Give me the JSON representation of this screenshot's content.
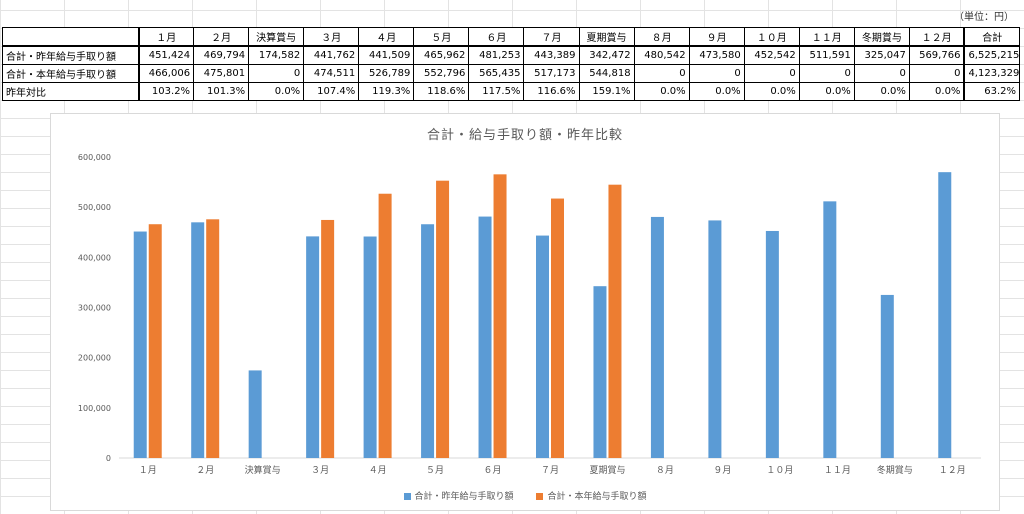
{
  "unit_label": "（単位：円）",
  "table": {
    "headers": [
      "",
      "１月",
      "２月",
      "決算賞与",
      "３月",
      "４月",
      "５月",
      "６月",
      "７月",
      "夏期賞与",
      "８月",
      "９月",
      "１０月",
      "１１月",
      "冬期賞与",
      "１２月",
      "合計"
    ],
    "rows": [
      {
        "label": "合計・昨年給与手取り額",
        "cells": [
          "451,424",
          "469,794",
          "174,582",
          "441,762",
          "441,509",
          "465,962",
          "481,253",
          "443,389",
          "342,472",
          "480,542",
          "473,580",
          "452,542",
          "511,591",
          "325,047",
          "569,766",
          "6,525,215"
        ]
      },
      {
        "label": "合計・本年給与手取り額",
        "cells": [
          "466,006",
          "475,801",
          "0",
          "474,511",
          "526,789",
          "552,796",
          "565,435",
          "517,173",
          "544,818",
          "0",
          "0",
          "0",
          "0",
          "0",
          "0",
          "4,123,329"
        ]
      },
      {
        "label": "昨年対比",
        "cells": [
          "103.2%",
          "101.3%",
          "0.0%",
          "107.4%",
          "119.3%",
          "118.6%",
          "117.5%",
          "116.6%",
          "159.1%",
          "0.0%",
          "0.0%",
          "0.0%",
          "0.0%",
          "0.0%",
          "0.0%",
          "63.2%"
        ]
      }
    ]
  },
  "chart_data": {
    "type": "bar",
    "title": "合計・給与手取り額・昨年比較",
    "categories": [
      "１月",
      "２月",
      "決算賞与",
      "３月",
      "４月",
      "５月",
      "６月",
      "７月",
      "夏期賞与",
      "８月",
      "９月",
      "１０月",
      "１１月",
      "冬期賞与",
      "１２月"
    ],
    "series": [
      {
        "name": "合計・昨年給与手取り額",
        "color": "#5b9bd5",
        "values": [
          451424,
          469794,
          174582,
          441762,
          441509,
          465962,
          481253,
          443389,
          342472,
          480542,
          473580,
          452542,
          511591,
          325047,
          569766
        ]
      },
      {
        "name": "合計・本年給与手取り額",
        "color": "#ed7d31",
        "values": [
          466006,
          475801,
          0,
          474511,
          526789,
          552796,
          565435,
          517173,
          544818,
          0,
          0,
          0,
          0,
          0,
          0
        ]
      }
    ],
    "yticks": [
      "0",
      "100,000",
      "200,000",
      "300,000",
      "400,000",
      "500,000",
      "600,000"
    ],
    "ylim": [
      0,
      600000
    ],
    "grid": false,
    "legend": "bottom"
  }
}
